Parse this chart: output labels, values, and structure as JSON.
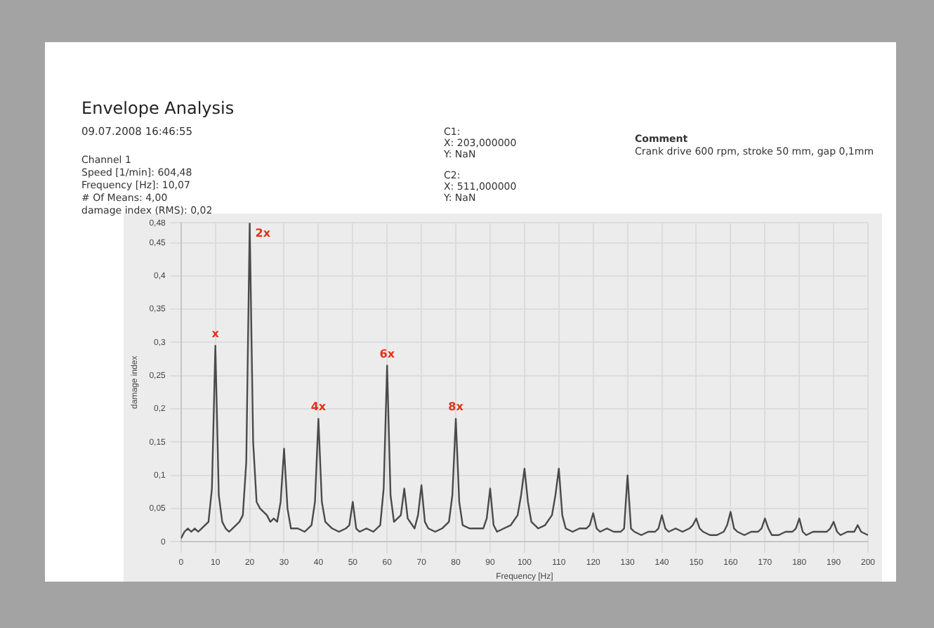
{
  "chart_data": {
    "type": "line",
    "title": "Envelope Analysis",
    "subtitle": "09.07.2008   16:46:55",
    "xlabel": "Frequency [Hz]",
    "ylabel": "damage index",
    "annotations": [
      "Channel 1",
      "Speed [1/min]: 604,48",
      "Frequency [Hz]: 10,07",
      "# Of Means: 4,00",
      "damage index (RMS): 0,02",
      "C1:",
      "X: 203,000000",
      "Y: NaN",
      "C2:",
      "X: 511,000000",
      "Y: NaN",
      "Comment",
      "Crank drive 600 rpm, stroke 50 mm, gap 0,1mm",
      {
        "text": "x",
        "x": 10,
        "y": 0.295
      },
      {
        "text": "2x",
        "x": 20,
        "y": 0.48
      },
      {
        "text": "4x",
        "x": 40,
        "y": 0.185
      },
      {
        "text": "6x",
        "x": 60,
        "y": 0.265
      },
      {
        "text": "8x",
        "x": 80,
        "y": 0.185
      }
    ],
    "series": [
      {
        "color": "#4a4a4a",
        "x": [
          0,
          1,
          2,
          3,
          4,
          5,
          6,
          7,
          8,
          9,
          10,
          11,
          12,
          13,
          14,
          15,
          16,
          17,
          18,
          19,
          20,
          21,
          22,
          23,
          24,
          25,
          26,
          27,
          28,
          29,
          30,
          31,
          32,
          34,
          36,
          38,
          39,
          40,
          41,
          42,
          44,
          46,
          48,
          49,
          50,
          51,
          52,
          54,
          56,
          58,
          59,
          60,
          61,
          62,
          64,
          65,
          66,
          68,
          69,
          70,
          71,
          72,
          74,
          76,
          78,
          79,
          80,
          81,
          82,
          84,
          86,
          88,
          89,
          90,
          91,
          92,
          94,
          96,
          98,
          99,
          100,
          101,
          102,
          104,
          106,
          108,
          109,
          110,
          111,
          112,
          114,
          116,
          118,
          119,
          120,
          121,
          122,
          124,
          126,
          128,
          129,
          130,
          131,
          132,
          134,
          136,
          138,
          139,
          140,
          141,
          142,
          144,
          146,
          148,
          149,
          150,
          151,
          152,
          154,
          156,
          158,
          159,
          160,
          161,
          162,
          164,
          166,
          168,
          169,
          170,
          171,
          172,
          174,
          176,
          178,
          179,
          180,
          181,
          182,
          184,
          186,
          188,
          189,
          190,
          191,
          192,
          194,
          196,
          197,
          198,
          200
        ],
        "values": [
          0.005,
          0.015,
          0.02,
          0.015,
          0.02,
          0.015,
          0.02,
          0.025,
          0.03,
          0.08,
          0.295,
          0.07,
          0.03,
          0.02,
          0.015,
          0.02,
          0.025,
          0.03,
          0.04,
          0.12,
          0.48,
          0.15,
          0.06,
          0.05,
          0.045,
          0.04,
          0.03,
          0.035,
          0.03,
          0.06,
          0.14,
          0.05,
          0.02,
          0.02,
          0.015,
          0.025,
          0.06,
          0.185,
          0.06,
          0.03,
          0.02,
          0.015,
          0.02,
          0.025,
          0.06,
          0.02,
          0.015,
          0.02,
          0.015,
          0.025,
          0.08,
          0.265,
          0.07,
          0.03,
          0.04,
          0.08,
          0.035,
          0.02,
          0.04,
          0.085,
          0.03,
          0.02,
          0.015,
          0.02,
          0.03,
          0.07,
          0.185,
          0.06,
          0.025,
          0.02,
          0.02,
          0.02,
          0.035,
          0.08,
          0.025,
          0.015,
          0.02,
          0.025,
          0.04,
          0.07,
          0.11,
          0.06,
          0.03,
          0.02,
          0.025,
          0.04,
          0.07,
          0.11,
          0.04,
          0.02,
          0.015,
          0.02,
          0.02,
          0.025,
          0.043,
          0.02,
          0.015,
          0.02,
          0.015,
          0.015,
          0.02,
          0.1,
          0.02,
          0.015,
          0.01,
          0.015,
          0.015,
          0.02,
          0.04,
          0.02,
          0.015,
          0.02,
          0.015,
          0.02,
          0.025,
          0.035,
          0.02,
          0.015,
          0.01,
          0.01,
          0.015,
          0.025,
          0.045,
          0.02,
          0.015,
          0.01,
          0.015,
          0.015,
          0.02,
          0.035,
          0.02,
          0.01,
          0.01,
          0.015,
          0.015,
          0.02,
          0.035,
          0.015,
          0.01,
          0.015,
          0.015,
          0.015,
          0.02,
          0.03,
          0.015,
          0.01,
          0.015,
          0.015,
          0.025,
          0.015,
          0.01
        ]
      }
    ],
    "xlim": [
      0,
      200
    ],
    "xticks": [
      0,
      10,
      20,
      30,
      40,
      50,
      60,
      70,
      80,
      90,
      100,
      110,
      120,
      130,
      140,
      150,
      160,
      170,
      180,
      190,
      200
    ],
    "ylim": [
      0,
      0.48
    ],
    "yticks": [
      {
        "value": 0,
        "label": "0"
      },
      {
        "value": 0.05,
        "label": "0,05"
      },
      {
        "value": 0.1,
        "label": "0,1"
      },
      {
        "value": 0.15,
        "label": "0,15"
      },
      {
        "value": 0.2,
        "label": "0,2"
      },
      {
        "value": 0.25,
        "label": "0,25"
      },
      {
        "value": 0.3,
        "label": "0,3"
      },
      {
        "value": 0.35,
        "label": "0,35"
      },
      {
        "value": 0.4,
        "label": "0,4"
      },
      {
        "value": 0.45,
        "label": "0,45"
      },
      {
        "value": 0.48,
        "label": "0,48"
      }
    ],
    "grid": true,
    "legend": false,
    "marker": "none",
    "line_style": "solid"
  }
}
